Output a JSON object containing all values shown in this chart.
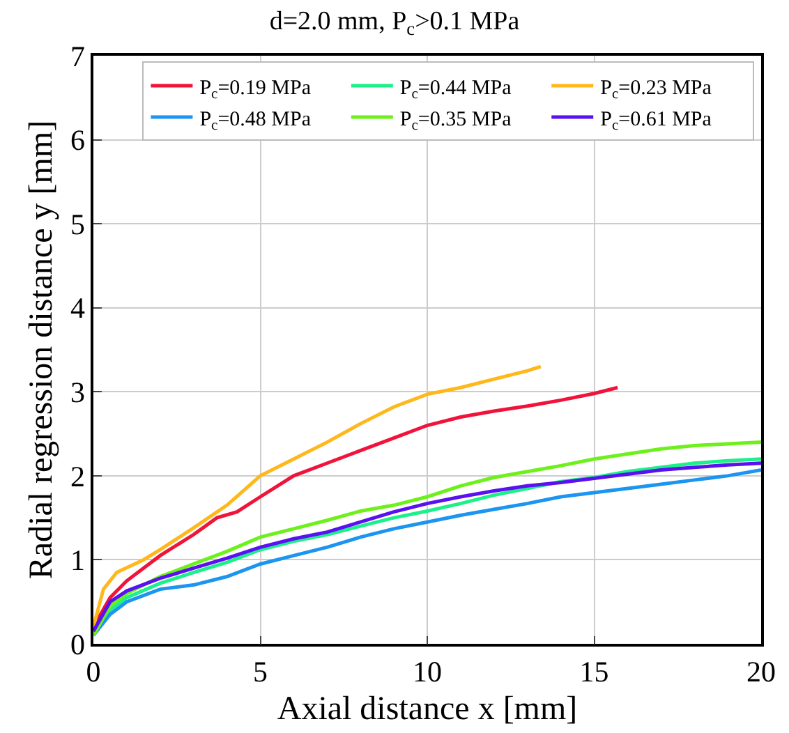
{
  "chart_data": {
    "type": "line",
    "title": "d=2.0 mm, P$_{c}$>0.1 MPa",
    "xlabel": "Axial distance x [mm]",
    "ylabel": "Radial regression distance y [mm]",
    "xlim": [
      0,
      20
    ],
    "xticks": [
      0,
      5,
      10,
      15,
      20
    ],
    "ylim": [
      0,
      7
    ],
    "yticks": [
      0,
      1,
      2,
      3,
      4,
      5,
      6,
      7
    ],
    "grid": true,
    "legend": "top right",
    "line_style": "solid",
    "marker": "none",
    "series": [
      {
        "name": "P$_{c}$=0.19 MPa",
        "color": "#f0133a",
        "x": [
          0,
          0.5,
          1,
          2,
          3,
          3.7,
          4.3,
          5,
          6,
          7,
          8,
          9,
          10,
          11,
          12,
          13,
          14,
          15,
          15.7
        ],
        "values": [
          0.2,
          0.55,
          0.75,
          1.05,
          1.3,
          1.5,
          1.57,
          1.75,
          2.0,
          2.15,
          2.3,
          2.45,
          2.6,
          2.7,
          2.77,
          2.83,
          2.9,
          2.98,
          3.05
        ]
      },
      {
        "name": "P$_{c}$=0.44 MPa",
        "color": "#1cf08a",
        "x": [
          0,
          0.5,
          1,
          2,
          3,
          4,
          5,
          6,
          7,
          8,
          9,
          10,
          11,
          12,
          13,
          14,
          15,
          16,
          17,
          18,
          19,
          20
        ],
        "values": [
          0.1,
          0.4,
          0.55,
          0.72,
          0.85,
          0.97,
          1.12,
          1.22,
          1.3,
          1.4,
          1.5,
          1.58,
          1.67,
          1.77,
          1.85,
          1.93,
          1.98,
          2.05,
          2.1,
          2.15,
          2.18,
          2.2
        ]
      },
      {
        "name": "P$_{c}$=0.23 MPa",
        "color": "#ffb81c",
        "x": [
          0,
          0.3,
          0.7,
          1.5,
          2,
          3,
          4,
          5,
          6,
          7,
          8,
          9,
          10,
          11,
          12,
          13,
          13.4
        ],
        "values": [
          0.2,
          0.65,
          0.85,
          1.0,
          1.12,
          1.38,
          1.65,
          2.0,
          2.2,
          2.4,
          2.62,
          2.82,
          2.97,
          3.05,
          3.15,
          3.25,
          3.3
        ]
      },
      {
        "name": "P$_{c}$=0.48 MPa",
        "color": "#1c95f0",
        "x": [
          0,
          0.5,
          1,
          2,
          3,
          4,
          5,
          6,
          7,
          8,
          9,
          10,
          11,
          12,
          13,
          14,
          15,
          16,
          17,
          18,
          19,
          20
        ],
        "values": [
          0.1,
          0.35,
          0.5,
          0.65,
          0.7,
          0.8,
          0.95,
          1.05,
          1.15,
          1.27,
          1.37,
          1.45,
          1.53,
          1.6,
          1.67,
          1.75,
          1.8,
          1.85,
          1.9,
          1.95,
          2.0,
          2.07
        ]
      },
      {
        "name": "P$_{c}$=0.35 MPa",
        "color": "#6ef01c",
        "x": [
          0,
          0.5,
          1,
          2,
          3,
          4,
          5,
          6,
          7,
          8,
          9,
          10,
          11,
          12,
          13,
          14,
          15,
          16,
          17,
          18,
          19,
          20
        ],
        "values": [
          0.1,
          0.45,
          0.6,
          0.8,
          0.95,
          1.1,
          1.27,
          1.37,
          1.47,
          1.58,
          1.65,
          1.75,
          1.88,
          1.98,
          2.05,
          2.12,
          2.2,
          2.26,
          2.32,
          2.36,
          2.38,
          2.4
        ]
      },
      {
        "name": "P$_{c}$=0.61 MPa",
        "color": "#5a10f0",
        "x": [
          0,
          0.5,
          1,
          2,
          3,
          4,
          5,
          6,
          7,
          8,
          9,
          10,
          11,
          12,
          13,
          14,
          15,
          16,
          17,
          18,
          19,
          20
        ],
        "values": [
          0.15,
          0.5,
          0.63,
          0.78,
          0.9,
          1.02,
          1.15,
          1.25,
          1.33,
          1.45,
          1.57,
          1.67,
          1.75,
          1.82,
          1.88,
          1.92,
          1.97,
          2.02,
          2.07,
          2.1,
          2.13,
          2.15
        ]
      }
    ]
  }
}
